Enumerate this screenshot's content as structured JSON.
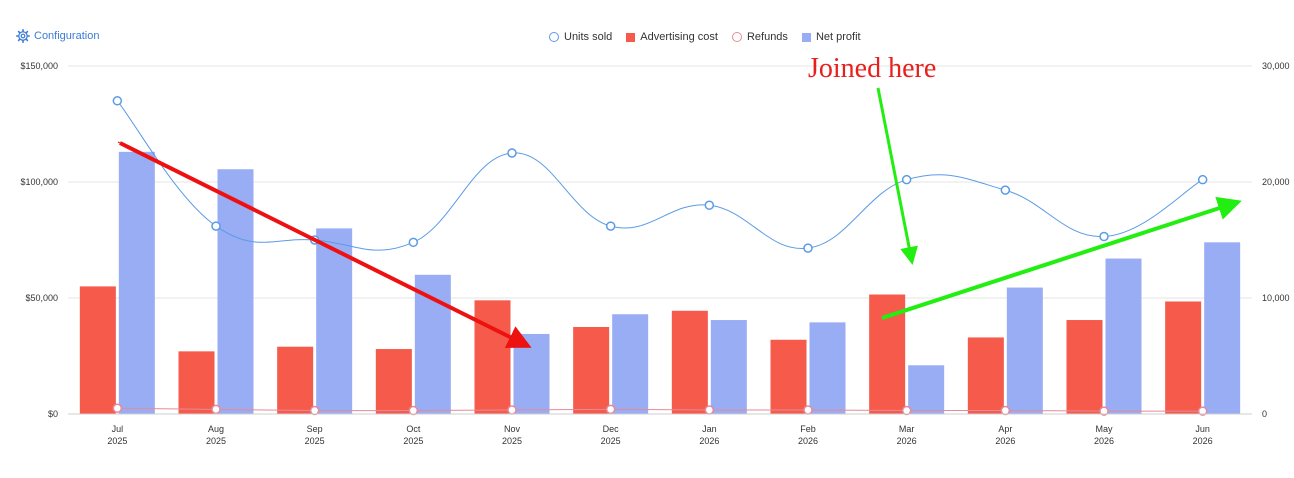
{
  "toolbar": {
    "config_label": "Configuration",
    "config_icon": "gear-icon"
  },
  "legend": [
    {
      "name": "Units sold",
      "color": "#5b9be6",
      "shape": "circle-outline"
    },
    {
      "name": "Advertising cost",
      "color": "#f55a4a",
      "shape": "square"
    },
    {
      "name": "Refunds",
      "color": "#e58a9a",
      "shape": "circle-outline"
    },
    {
      "name": "Net profit",
      "color": "#99adf5",
      "shape": "square"
    }
  ],
  "annotation": {
    "text": "Joined here",
    "color": "#e8201d",
    "green_arrow_color": "#22ee11",
    "red_arrow_color": "#ee1111"
  },
  "chart_data": {
    "type": "bar",
    "categories": [
      [
        "Jul",
        "2025"
      ],
      [
        "Aug",
        "2025"
      ],
      [
        "Sep",
        "2025"
      ],
      [
        "Oct",
        "2025"
      ],
      [
        "Nov",
        "2025"
      ],
      [
        "Dec",
        "2025"
      ],
      [
        "Jan",
        "2026"
      ],
      [
        "Feb",
        "2026"
      ],
      [
        "Mar",
        "2026"
      ],
      [
        "Apr",
        "2026"
      ],
      [
        "May",
        "2026"
      ],
      [
        "Jun",
        "2026"
      ]
    ],
    "left_axis": {
      "min": 0,
      "max": 150000,
      "ticks": [
        "$0",
        "$50,000",
        "$100,000",
        "$150,000"
      ]
    },
    "right_axis": {
      "min": 0,
      "max": 30000,
      "ticks": [
        "0",
        "10,000",
        "20,000",
        "30,000"
      ]
    },
    "grid": true,
    "series": [
      {
        "name": "Advertising cost",
        "kind": "bar",
        "axis": "left",
        "color": "#f55a4a",
        "values": [
          55000,
          27000,
          29000,
          28000,
          49000,
          37500,
          44500,
          32000,
          51500,
          33000,
          40500,
          48500
        ]
      },
      {
        "name": "Net profit",
        "kind": "bar",
        "axis": "left",
        "color": "#99adf5",
        "values": [
          113000,
          105500,
          80000,
          60000,
          34500,
          43000,
          40500,
          39500,
          21000,
          54500,
          67000,
          74000
        ]
      },
      {
        "name": "Units sold",
        "kind": "line",
        "axis": "right",
        "color": "#5b9be6",
        "values": [
          27000,
          16200,
          15000,
          14800,
          22500,
          16200,
          18000,
          14300,
          20200,
          19300,
          15300,
          20200
        ]
      },
      {
        "name": "Refunds",
        "kind": "line",
        "axis": "right",
        "color": "#e58a9a",
        "values": [
          500,
          400,
          300,
          300,
          350,
          400,
          350,
          350,
          300,
          300,
          250,
          250
        ]
      }
    ]
  }
}
